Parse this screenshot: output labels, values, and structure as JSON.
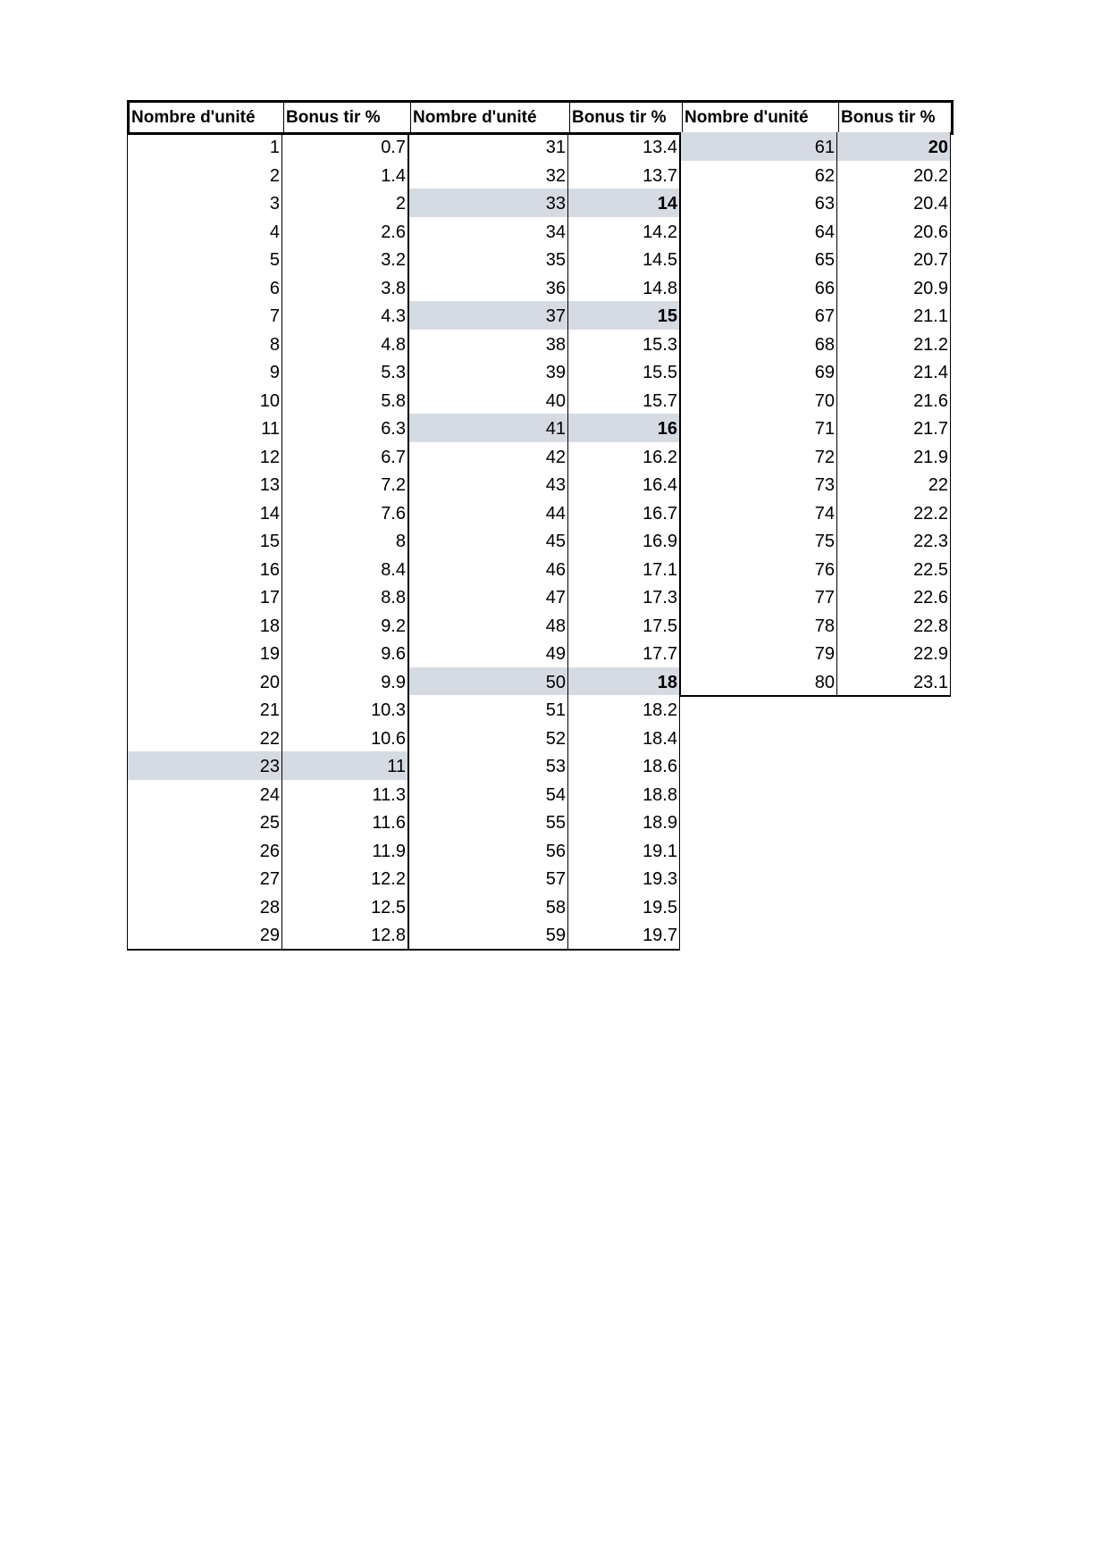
{
  "headers": [
    "Nombre d'unité",
    "Bonus tir %",
    "Nombre d'unité",
    "Bonus tir %",
    "Nombre d'unité",
    "Bonus tir %"
  ],
  "highlight_color": "#d6dbe3",
  "groups": [
    {
      "rows": [
        {
          "n": "1",
          "bonus": "0.7"
        },
        {
          "n": "2",
          "bonus": "1.4"
        },
        {
          "n": "3",
          "bonus": "2"
        },
        {
          "n": "4",
          "bonus": "2.6"
        },
        {
          "n": "5",
          "bonus": "3.2"
        },
        {
          "n": "6",
          "bonus": "3.8"
        },
        {
          "n": "7",
          "bonus": "4.3"
        },
        {
          "n": "8",
          "bonus": "4.8"
        },
        {
          "n": "9",
          "bonus": "5.3"
        },
        {
          "n": "10",
          "bonus": "5.8"
        },
        {
          "n": "11",
          "bonus": "6.3"
        },
        {
          "n": "12",
          "bonus": "6.7"
        },
        {
          "n": "13",
          "bonus": "7.2"
        },
        {
          "n": "14",
          "bonus": "7.6"
        },
        {
          "n": "15",
          "bonus": "8"
        },
        {
          "n": "16",
          "bonus": "8.4"
        },
        {
          "n": "17",
          "bonus": "8.8"
        },
        {
          "n": "18",
          "bonus": "9.2"
        },
        {
          "n": "19",
          "bonus": "9.6"
        },
        {
          "n": "20",
          "bonus": "9.9"
        },
        {
          "n": "21",
          "bonus": "10.3"
        },
        {
          "n": "22",
          "bonus": "10.6"
        },
        {
          "n": "23",
          "bonus": "11",
          "highlight": true
        },
        {
          "n": "24",
          "bonus": "11.3"
        },
        {
          "n": "25",
          "bonus": "11.6"
        },
        {
          "n": "26",
          "bonus": "11.9"
        },
        {
          "n": "27",
          "bonus": "12.2"
        },
        {
          "n": "28",
          "bonus": "12.5"
        },
        {
          "n": "29",
          "bonus": "12.8"
        }
      ]
    },
    {
      "rows": [
        {
          "n": "31",
          "bonus": "13.4"
        },
        {
          "n": "32",
          "bonus": "13.7"
        },
        {
          "n": "33",
          "bonus": "14",
          "highlight": true,
          "bold": true
        },
        {
          "n": "34",
          "bonus": "14.2"
        },
        {
          "n": "35",
          "bonus": "14.5"
        },
        {
          "n": "36",
          "bonus": "14.8"
        },
        {
          "n": "37",
          "bonus": "15",
          "highlight": true,
          "bold": true
        },
        {
          "n": "38",
          "bonus": "15.3"
        },
        {
          "n": "39",
          "bonus": "15.5"
        },
        {
          "n": "40",
          "bonus": "15.7"
        },
        {
          "n": "41",
          "bonus": "16",
          "highlight": true,
          "bold": true
        },
        {
          "n": "42",
          "bonus": "16.2"
        },
        {
          "n": "43",
          "bonus": "16.4"
        },
        {
          "n": "44",
          "bonus": "16.7"
        },
        {
          "n": "45",
          "bonus": "16.9"
        },
        {
          "n": "46",
          "bonus": "17.1"
        },
        {
          "n": "47",
          "bonus": "17.3"
        },
        {
          "n": "48",
          "bonus": "17.5"
        },
        {
          "n": "49",
          "bonus": "17.7"
        },
        {
          "n": "50",
          "bonus": "18",
          "highlight": true,
          "bold": true
        },
        {
          "n": "51",
          "bonus": "18.2"
        },
        {
          "n": "52",
          "bonus": "18.4"
        },
        {
          "n": "53",
          "bonus": "18.6"
        },
        {
          "n": "54",
          "bonus": "18.8"
        },
        {
          "n": "55",
          "bonus": "18.9"
        },
        {
          "n": "56",
          "bonus": "19.1"
        },
        {
          "n": "57",
          "bonus": "19.3"
        },
        {
          "n": "58",
          "bonus": "19.5"
        },
        {
          "n": "59",
          "bonus": "19.7"
        }
      ]
    },
    {
      "rows": [
        {
          "n": "61",
          "bonus": "20",
          "highlight": true,
          "bold": true
        },
        {
          "n": "62",
          "bonus": "20.2"
        },
        {
          "n": "63",
          "bonus": "20.4"
        },
        {
          "n": "64",
          "bonus": "20.6"
        },
        {
          "n": "65",
          "bonus": "20.7"
        },
        {
          "n": "66",
          "bonus": "20.9"
        },
        {
          "n": "67",
          "bonus": "21.1"
        },
        {
          "n": "68",
          "bonus": "21.2"
        },
        {
          "n": "69",
          "bonus": "21.4"
        },
        {
          "n": "70",
          "bonus": "21.6"
        },
        {
          "n": "71",
          "bonus": "21.7"
        },
        {
          "n": "72",
          "bonus": "21.9"
        },
        {
          "n": "73",
          "bonus": "22"
        },
        {
          "n": "74",
          "bonus": "22.2"
        },
        {
          "n": "75",
          "bonus": "22.3"
        },
        {
          "n": "76",
          "bonus": "22.5"
        },
        {
          "n": "77",
          "bonus": "22.6"
        },
        {
          "n": "78",
          "bonus": "22.8"
        },
        {
          "n": "79",
          "bonus": "22.9"
        },
        {
          "n": "80",
          "bonus": "23.1"
        }
      ]
    }
  ]
}
